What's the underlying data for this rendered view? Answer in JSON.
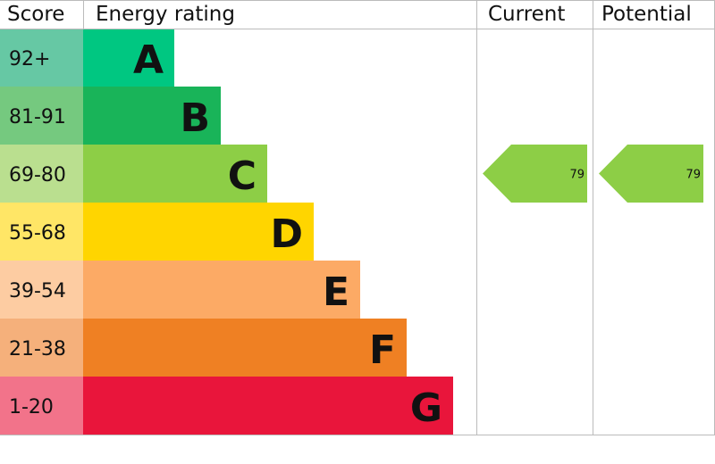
{
  "chart_data": {
    "type": "bar",
    "headers": {
      "score": "Score",
      "rating": "Energy rating",
      "current": "Current",
      "potential": "Potential"
    },
    "bands": [
      {
        "letter": "A",
        "range": "92+",
        "color": "#00c781",
        "score_color": "#66c8a4"
      },
      {
        "letter": "B",
        "range": "81-91",
        "color": "#19b459",
        "score_color": "#75c97f"
      },
      {
        "letter": "C",
        "range": "69-80",
        "color": "#8dce46",
        "score_color": "#badf8f"
      },
      {
        "letter": "D",
        "range": "55-68",
        "color": "#ffd500",
        "score_color": "#ffe666"
      },
      {
        "letter": "E",
        "range": "39-54",
        "color": "#fcaa65",
        "score_color": "#fdcca2"
      },
      {
        "letter": "F",
        "range": "21-38",
        "color": "#ef8023",
        "score_color": "#f5b07b"
      },
      {
        "letter": "G",
        "range": "1-20",
        "color": "#e9153b",
        "score_color": "#f2738a"
      }
    ],
    "current": {
      "value": "79",
      "band": "C"
    },
    "potential": {
      "value": "79",
      "band": "C"
    }
  }
}
